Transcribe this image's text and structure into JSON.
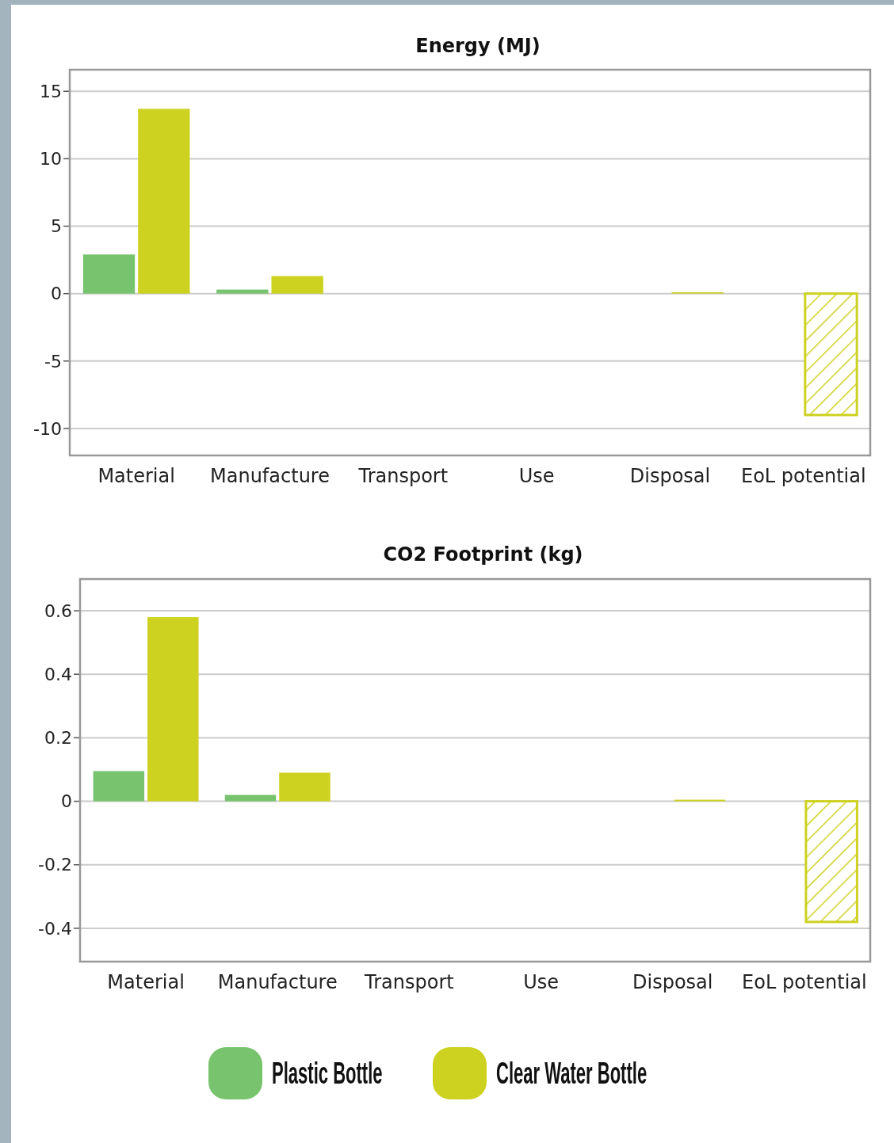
{
  "chart_data": [
    {
      "type": "bar",
      "title": "Energy (MJ)",
      "categories": [
        "Material",
        "Manufacture",
        "Transport",
        "Use",
        "Disposal",
        "EoL potential"
      ],
      "series": [
        {
          "color": "#78c46e",
          "values": [
            2.9,
            0.3,
            0,
            0,
            0,
            null
          ]
        },
        {
          "color": "#cdd120",
          "values": [
            13.7,
            1.3,
            0,
            0,
            0.1,
            -9.0
          ]
        }
      ],
      "ylim": [
        -12,
        16.6
      ],
      "yticks": [
        -10,
        -5,
        0,
        5,
        10,
        15
      ],
      "grid": "y",
      "legend": false
    },
    {
      "type": "bar",
      "title": "CO2 Footprint (kg)",
      "categories": [
        "Material",
        "Manufacture",
        "Transport",
        "Use",
        "Disposal",
        "EoL potential"
      ],
      "series": [
        {
          "name": "Plastic Bottle",
          "color": "#78c46e",
          "values": [
            0.095,
            0.02,
            0,
            0,
            0,
            null
          ]
        },
        {
          "name": "Clear Water Bottle",
          "color": "#cdd120",
          "values": [
            0.58,
            0.09,
            0,
            0,
            0.005,
            -0.38
          ]
        }
      ],
      "ylim": [
        -0.505,
        0.7
      ],
      "yticks": [
        {
          "value": -0.4,
          "label": "-0.4"
        },
        {
          "value": -0.2,
          "label": "-0.2"
        },
        0,
        {
          "value": 0.2,
          "label": "0.2"
        },
        {
          "value": 0.4,
          "label": "0.4"
        },
        {
          "value": 0.6,
          "label": "0.6"
        }
      ],
      "grid": "y",
      "legend": "bottom"
    }
  ]
}
